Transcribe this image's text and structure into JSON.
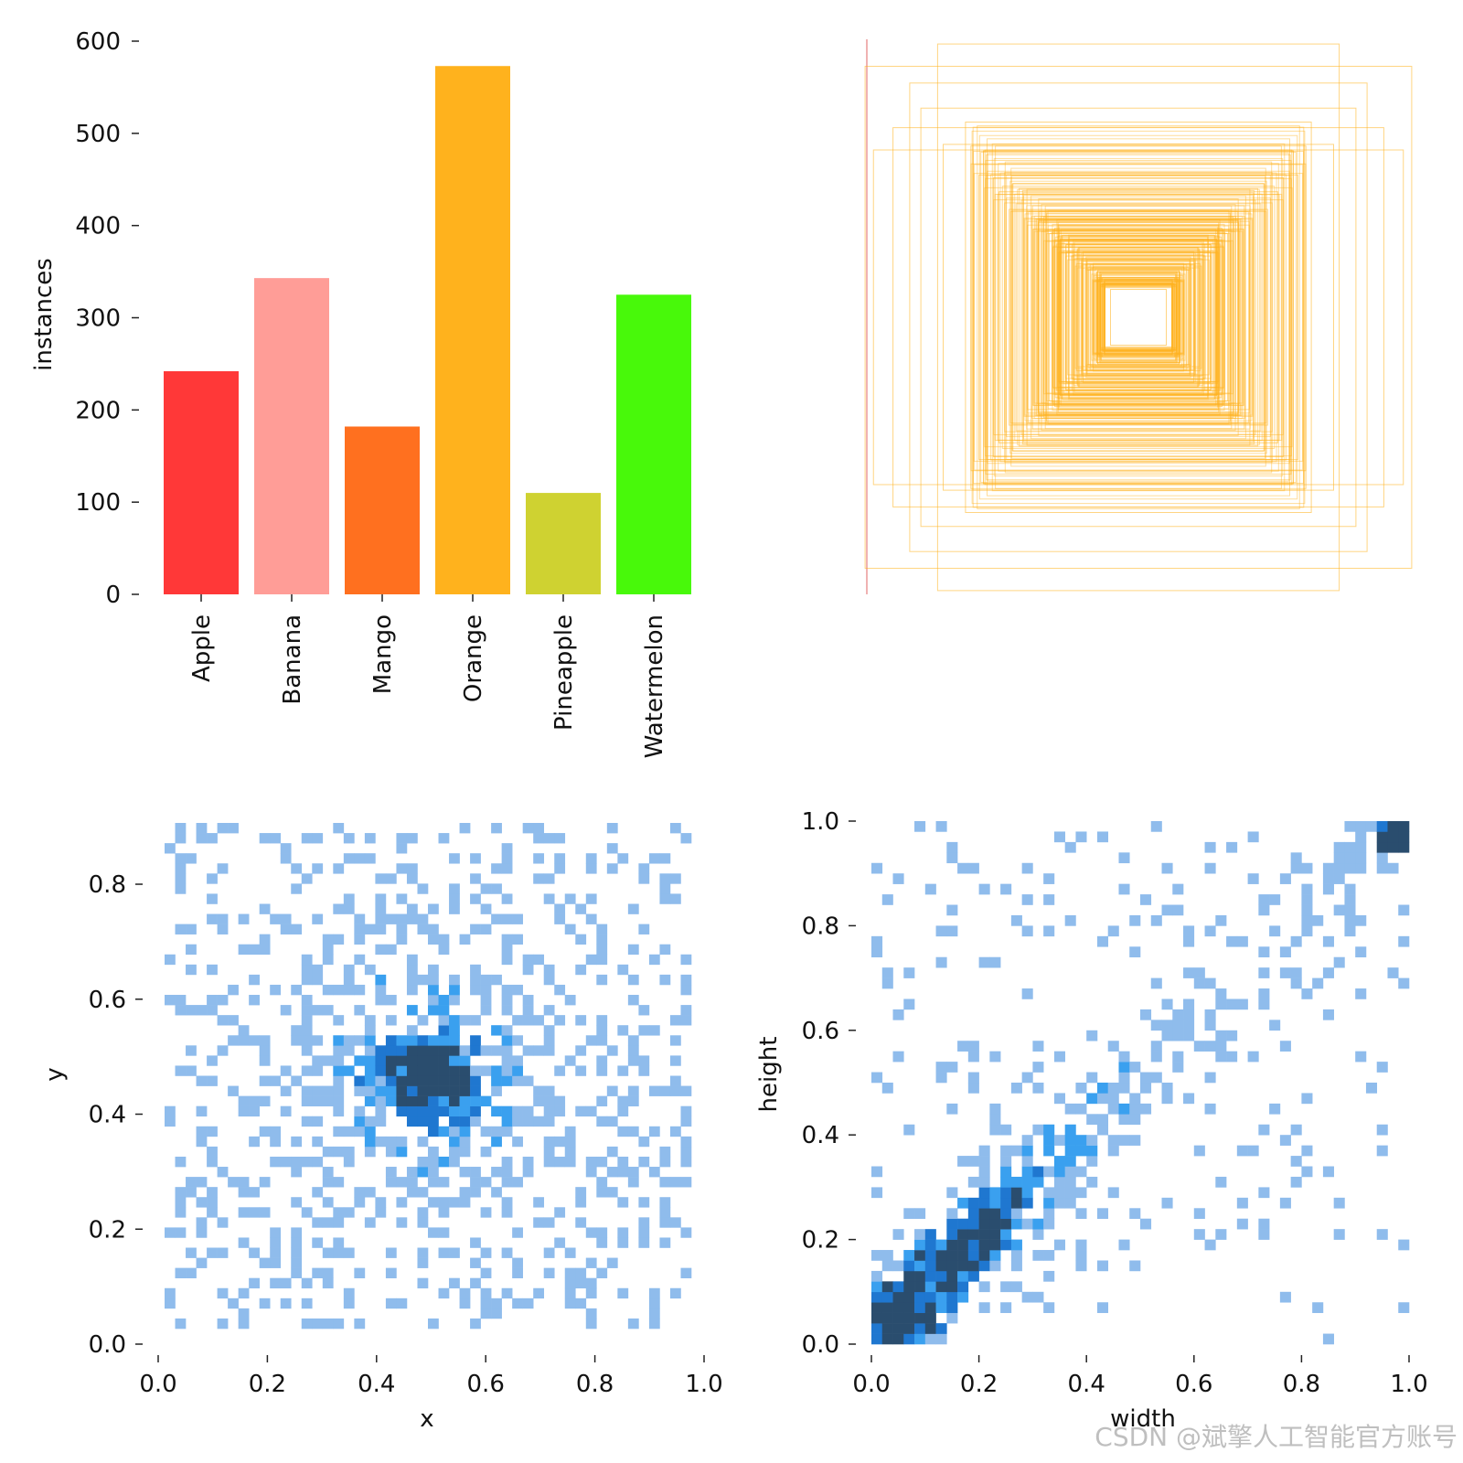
{
  "watermark": "CSDN @斌擎人工智能官方账号",
  "chart_data": [
    {
      "type": "bar",
      "title": "",
      "xlabel": "",
      "ylabel": "instances",
      "ylim": [
        0,
        600
      ],
      "yticks": [
        "0",
        "100",
        "200",
        "300",
        "400",
        "500",
        "600"
      ],
      "categories": [
        "Apple",
        "Banana",
        "Mango",
        "Orange",
        "Pineapple",
        "Watermelon"
      ],
      "values": [
        242,
        343,
        182,
        573,
        110,
        325
      ],
      "colors": [
        "#ff3838",
        "#ff9d97",
        "#ff701f",
        "#ffb21d",
        "#cfd231",
        "#48f90a"
      ]
    },
    {
      "type": "boxes",
      "title": "",
      "description_colors": {
        "box": "#ffb21d",
        "axis": "#e06666"
      },
      "boxes_wh": [
        [
          0.72,
          0.98
        ],
        [
          0.98,
          0.9
        ],
        [
          0.82,
          0.84
        ],
        [
          0.95,
          0.6
        ],
        [
          0.88,
          0.68
        ],
        [
          0.78,
          0.75
        ],
        [
          0.7,
          0.62
        ],
        [
          0.62,
          0.7
        ],
        [
          0.6,
          0.55
        ],
        [
          0.55,
          0.6
        ],
        [
          0.52,
          0.5
        ],
        [
          0.5,
          0.45
        ],
        [
          0.45,
          0.48
        ],
        [
          0.42,
          0.42
        ],
        [
          0.4,
          0.38
        ],
        [
          0.38,
          0.4
        ],
        [
          0.36,
          0.34
        ],
        [
          0.34,
          0.36
        ],
        [
          0.32,
          0.3
        ],
        [
          0.3,
          0.32
        ],
        [
          0.28,
          0.28
        ],
        [
          0.26,
          0.26
        ],
        [
          0.24,
          0.22
        ],
        [
          0.22,
          0.24
        ],
        [
          0.2,
          0.2
        ],
        [
          0.18,
          0.18
        ],
        [
          0.16,
          0.15
        ],
        [
          0.14,
          0.16
        ],
        [
          0.12,
          0.12
        ],
        [
          0.1,
          0.1
        ]
      ]
    },
    {
      "type": "heatmap",
      "title": "",
      "xlabel": "x",
      "ylabel": "y",
      "xlim": [
        0,
        1
      ],
      "ylim": [
        0,
        0.94
      ],
      "xticks": [
        "0.0",
        "0.2",
        "0.4",
        "0.6",
        "0.8",
        "1.0"
      ],
      "yticks": [
        "0.0",
        "0.2",
        "0.4",
        "0.6",
        "0.8"
      ],
      "peak": {
        "x": 0.5,
        "y": 0.5
      },
      "bins": 50
    },
    {
      "type": "heatmap",
      "title": "",
      "xlabel": "width",
      "ylabel": "height",
      "xlim": [
        0,
        1
      ],
      "ylim": [
        0,
        1
      ],
      "xticks": [
        "0.0",
        "0.2",
        "0.4",
        "0.6",
        "0.8",
        "1.0"
      ],
      "yticks": [
        "0.0",
        "0.2",
        "0.4",
        "0.6",
        "0.8",
        "1.0"
      ],
      "trend": "height roughly equals width, densest near 0.05-0.3",
      "bins": 50
    }
  ]
}
